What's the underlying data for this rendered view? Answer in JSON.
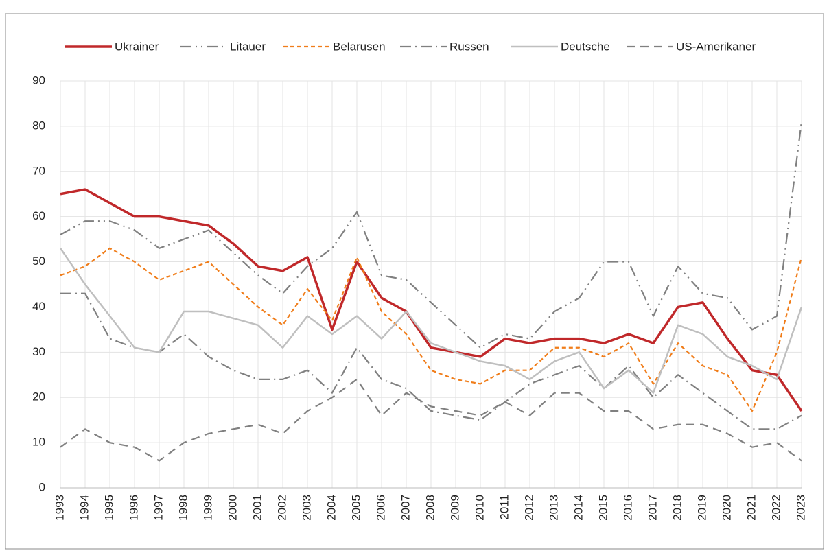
{
  "chart_data": {
    "type": "line",
    "x": [
      1993,
      1994,
      1995,
      1996,
      1997,
      1998,
      1999,
      2000,
      2001,
      2002,
      2003,
      2004,
      2005,
      2006,
      2007,
      2008,
      2009,
      2010,
      2011,
      2012,
      2013,
      2014,
      2015,
      2016,
      2017,
      2018,
      2019,
      2020,
      2021,
      2022,
      2023
    ],
    "series": [
      {
        "name": "Ukrainer",
        "color": "#c0282a",
        "width": 3.5,
        "dash": "none",
        "values": [
          65,
          66,
          63,
          60,
          60,
          59,
          58,
          54,
          49,
          48,
          51,
          35,
          50,
          42,
          39,
          31,
          30,
          29,
          33,
          32,
          33,
          33,
          32,
          34,
          32,
          40,
          41,
          33,
          26,
          25,
          17
        ]
      },
      {
        "name": "Litauer",
        "color": "#808080",
        "width": 2.2,
        "dash": "16,6,2,6,2,6",
        "values": [
          56,
          59,
          59,
          57,
          53,
          55,
          57,
          52,
          47,
          43,
          49,
          53,
          61,
          47,
          46,
          41,
          36,
          31,
          34,
          33,
          39,
          42,
          50,
          50,
          38,
          49,
          43,
          42,
          35,
          38,
          81
        ]
      },
      {
        "name": "Belarusen",
        "color": "#f07d1a",
        "width": 2.2,
        "dash": "6,4",
        "values": [
          47,
          49,
          53,
          50,
          46,
          48,
          50,
          45,
          40,
          36,
          44,
          37,
          51,
          39,
          34,
          26,
          24,
          23,
          26,
          26,
          31,
          31,
          29,
          32,
          23,
          32,
          27,
          25,
          17,
          30,
          51
        ]
      },
      {
        "name": "Russen",
        "color": "#808080",
        "width": 2.2,
        "dash": "16,6,2,6",
        "values": [
          43,
          43,
          33,
          31,
          30,
          34,
          29,
          26,
          24,
          24,
          26,
          21,
          31,
          24,
          22,
          17,
          16,
          15,
          19,
          23,
          25,
          27,
          22,
          27,
          20,
          25,
          21,
          17,
          13,
          13,
          16
        ]
      },
      {
        "name": "Deutsche",
        "color": "#bfbfbf",
        "width": 2.5,
        "dash": "none",
        "values": [
          53,
          45,
          38,
          31,
          30,
          39,
          39,
          37.5,
          36,
          31,
          38,
          34,
          38,
          33,
          39,
          32,
          30,
          28,
          27,
          24,
          28,
          30,
          22,
          26,
          21,
          36,
          34,
          29,
          27,
          24,
          40
        ]
      },
      {
        "name": "US-Amerikaner",
        "color": "#808080",
        "width": 2.2,
        "dash": "12,8",
        "values": [
          9,
          13,
          10,
          9,
          6,
          10,
          12,
          13,
          14,
          12,
          17,
          20,
          24,
          16,
          21,
          18,
          17,
          16,
          19,
          16,
          21,
          21,
          17,
          17,
          13,
          14,
          14,
          12,
          9,
          10,
          6
        ]
      }
    ],
    "ylim": [
      0,
      90
    ],
    "yticks": [
      0,
      10,
      20,
      30,
      40,
      50,
      60,
      70,
      80,
      90
    ],
    "grid": true,
    "legend": "top"
  }
}
